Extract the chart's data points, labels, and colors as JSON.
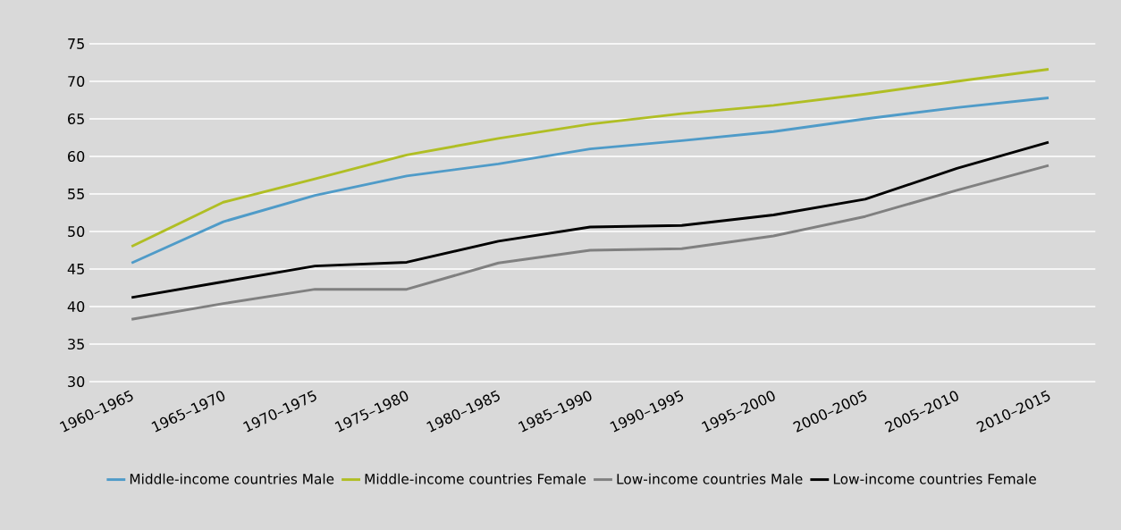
{
  "chart_data": {
    "type": "line",
    "categories": [
      "1960–1965",
      "1965–1970",
      "1970–1975",
      "1975–1980",
      "1980–1985",
      "1985–1990",
      "1990–1995",
      "1995–2000",
      "2000–2005",
      "2005–2010",
      "2010–2015"
    ],
    "series": [
      {
        "name": "Middle-income countries Male",
        "color": "#4f9bc8",
        "values": [
          45.8,
          51.3,
          54.8,
          57.4,
          59.0,
          61.0,
          62.1,
          63.3,
          65.0,
          66.5,
          67.8
        ]
      },
      {
        "name": "Middle-income countries Female",
        "color": "#b0be24",
        "values": [
          48.0,
          53.9,
          57.0,
          60.2,
          62.4,
          64.3,
          65.7,
          66.8,
          68.3,
          70.0,
          71.6
        ]
      },
      {
        "name": "Low-income countries Male",
        "color": "#808080",
        "values": [
          38.3,
          40.4,
          42.3,
          42.3,
          45.8,
          47.5,
          47.7,
          49.4,
          52.0,
          55.5,
          58.8
        ]
      },
      {
        "name": "Low-income countries Female",
        "color": "#000000",
        "values": [
          41.2,
          43.3,
          45.4,
          45.9,
          48.7,
          50.6,
          50.8,
          52.2,
          54.3,
          58.4,
          61.9
        ]
      }
    ],
    "ylim": [
      30,
      75
    ],
    "yticks": [
      30,
      35,
      40,
      45,
      50,
      55,
      60,
      65,
      70,
      75
    ],
    "grid": "y",
    "legend": "bottom",
    "marker": "none",
    "line_style": "solid"
  }
}
